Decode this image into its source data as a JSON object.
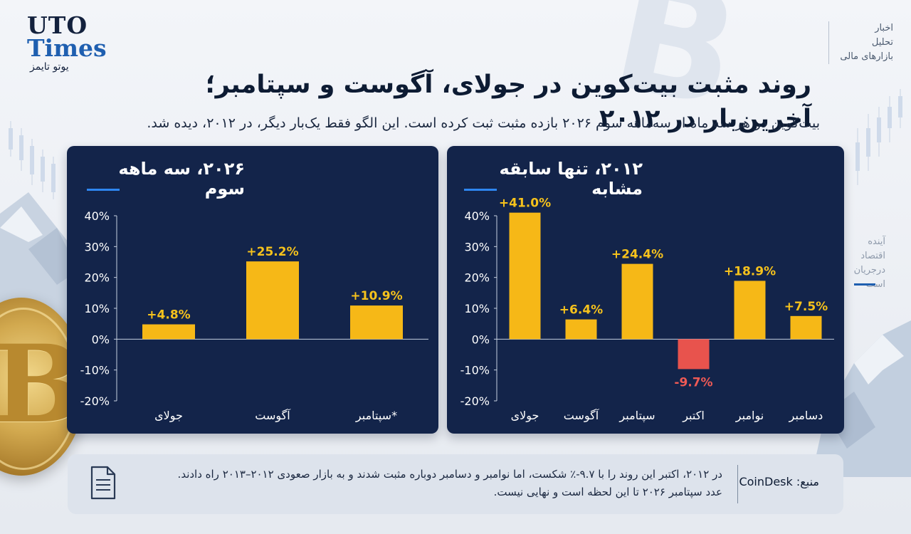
{
  "brand": {
    "name_line1": "UTO",
    "name_line2": "Times",
    "name_fa": "یوتو تایمز"
  },
  "nav": {
    "items": [
      "اخبار",
      "تحلیل",
      "بازارهای مالی"
    ]
  },
  "side": {
    "items": [
      "آینده",
      "اقتصاد",
      "درجریان است"
    ]
  },
  "headline": "روند مثبت بیت‌کوین در جولای، آگوست و سپتامبر؛ آخرین‌بار در ۲۰۱۲",
  "subheadline": "بیت‌کوین در هر سه ماه از سه‌ماهه سوم ۲۰۲۶ بازده مثبت ثبت کرده است. این الگو فقط یک‌بار دیگر، در ۲۰۱۲، دیده شد.",
  "colors": {
    "panel_bg": "#13244a",
    "bar_positive": "#f6b817",
    "bar_negative": "#e8534d",
    "label_positive": "#f6c21c",
    "label_negative": "#ef5a55",
    "accent": "#2e86f0"
  },
  "chart_data": [
    {
      "type": "bar",
      "title": "۲۰۲۶، سه ماهه سوم",
      "categories": [
        "جولای",
        "آگوست",
        "سپتامبر*"
      ],
      "values": [
        4.8,
        25.2,
        10.9
      ],
      "value_labels": [
        "+4.8%",
        "+25.2%",
        "+10.9%"
      ],
      "ylim": [
        -20,
        40
      ],
      "yticks": [
        40,
        30,
        20,
        10,
        0,
        -10,
        -20
      ],
      "ytick_labels": [
        "40%",
        "30%",
        "20%",
        "10%",
        "0%",
        "-10%",
        "-20%"
      ],
      "grid": false
    },
    {
      "type": "bar",
      "title": "۲۰۱۲، تنها سابقه مشابه",
      "categories": [
        "جولای",
        "آگوست",
        "سپتامبر",
        "اکتبر",
        "نوامبر",
        "دسامبر"
      ],
      "values": [
        41.0,
        6.4,
        24.4,
        -9.7,
        18.9,
        7.5
      ],
      "value_labels": [
        "+41.0%",
        "+6.4%",
        "+24.4%",
        "-9.7%",
        "+18.9%",
        "+7.5%"
      ],
      "ylim": [
        -20,
        40
      ],
      "yticks": [
        40,
        30,
        20,
        10,
        0,
        -10,
        -20
      ],
      "ytick_labels": [
        "40%",
        "30%",
        "20%",
        "10%",
        "0%",
        "-10%",
        "-20%"
      ],
      "grid": false
    }
  ],
  "note": {
    "source_label": "منبع: CoinDesk",
    "line1": "در ۲۰۱۲، اکتبر این روند را با ۹.۷-٪ شکست، اما نوامبر و دسامبر دوباره مثبت شدند و به بازار صعودی ۲۰۱۲–۲۰۱۳ راه دادند.",
    "line2": "عدد سپتامبر ۲۰۲۶ تا این لحظه است و نهایی نیست."
  }
}
